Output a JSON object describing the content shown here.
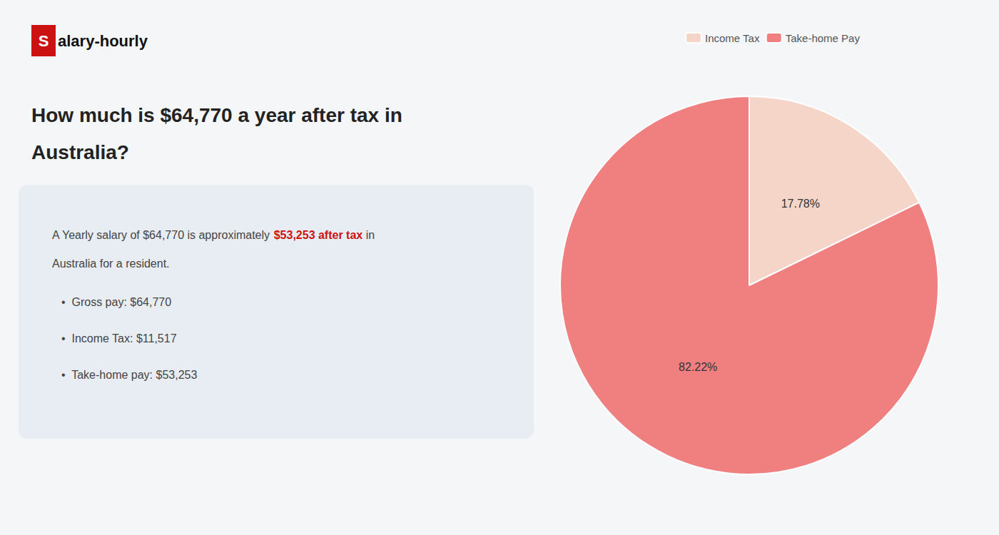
{
  "chart_data": {
    "type": "pie",
    "title": "How much is $64,770 a year after tax in\nAustralia?",
    "annotations": [
      "S",
      "alary-hourly",
      "A Yearly salary of $64,770 is approximately ",
      "$53,253 after tax",
      " in",
      "Australia for a resident.",
      "•  Gross pay: $64,770",
      "•  Income Tax: $11,517",
      "•  Take-home pay: $53,253"
    ],
    "categories": [
      "Income Tax",
      "Take-home Pay"
    ],
    "values": [
      17.78,
      82.22
    ],
    "value_labels": [
      "17.78%",
      "82.22%"
    ],
    "colors": [
      "#f5d5c8",
      "#f08080"
    ],
    "data_labels": true,
    "legend": "top"
  }
}
